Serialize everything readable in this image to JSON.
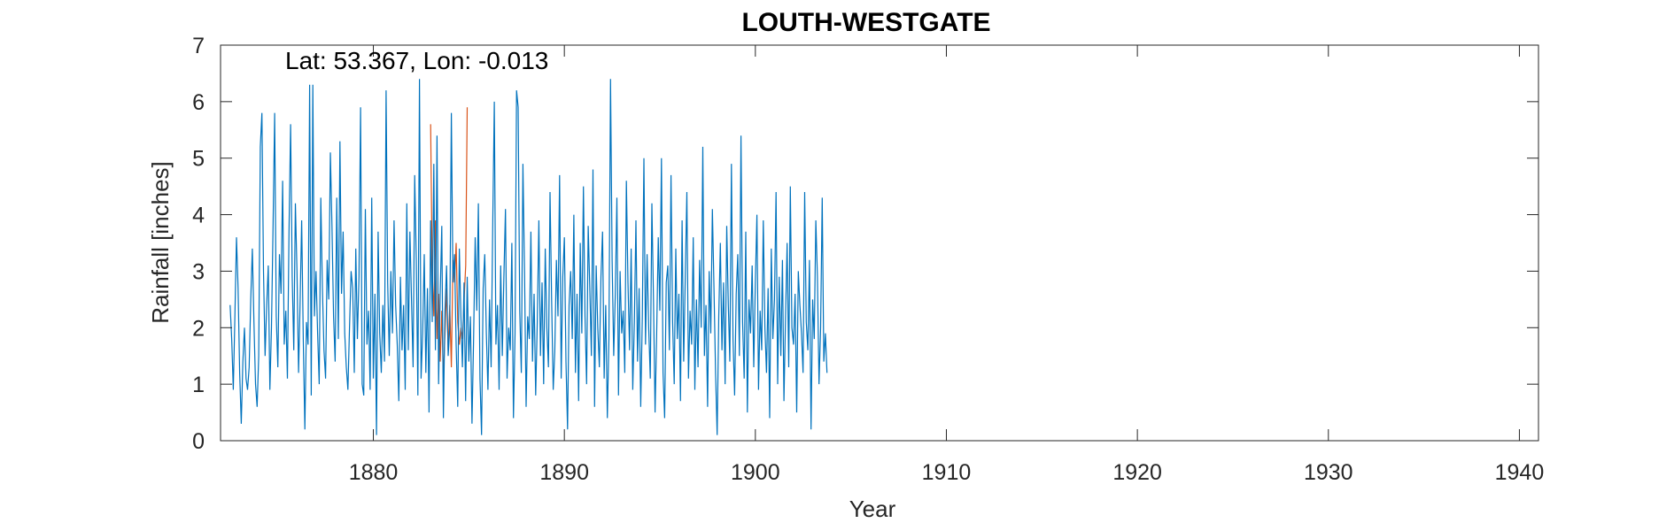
{
  "chart_data": {
    "type": "line",
    "title": "LOUTH-WESTGATE",
    "xlabel": "Year",
    "ylabel": "Rainfall [inches]",
    "annotation": "Lat: 53.367, Lon: -0.013",
    "xlim": [
      1872,
      1941
    ],
    "ylim": [
      0,
      7
    ],
    "xticks": [
      1880,
      1890,
      1900,
      1910,
      1920,
      1930,
      1940
    ],
    "yticks": [
      0,
      1,
      2,
      3,
      4,
      5,
      6,
      7
    ],
    "grid": false,
    "box": true,
    "colors": {
      "primary": "#0072BD",
      "secondary": "#D95319"
    },
    "series": [
      {
        "color": "#0072BD",
        "x_start": 1872.5,
        "x_step": 0.08333,
        "values": [
          2.4,
          1.8,
          0.9,
          2.2,
          3.6,
          2.7,
          1.2,
          0.3,
          1.4,
          2.0,
          1.1,
          0.9,
          1.3,
          2.5,
          3.4,
          2.1,
          1.0,
          0.6,
          1.5,
          5.2,
          5.8,
          3.0,
          1.5,
          2.4,
          3.1,
          0.9,
          2.0,
          3.8,
          5.8,
          2.2,
          1.3,
          3.3,
          2.6,
          4.6,
          1.7,
          2.3,
          1.1,
          3.7,
          5.6,
          2.9,
          1.6,
          4.2,
          3.0,
          1.2,
          2.5,
          3.9,
          1.8,
          0.2,
          2.1,
          1.7,
          6.3,
          0.8,
          6.3,
          2.2,
          3.0,
          1.9,
          1.0,
          4.3,
          2.7,
          1.6,
          1.1,
          3.2,
          2.5,
          5.1,
          3.8,
          2.2,
          1.4,
          4.3,
          1.8,
          5.3,
          2.6,
          3.7,
          1.9,
          1.3,
          0.9,
          2.0,
          3.0,
          2.7,
          1.2,
          3.4,
          1.8,
          2.9,
          5.9,
          1.0,
          0.8,
          4.1,
          1.7,
          2.3,
          0.9,
          4.3,
          1.1,
          2.6,
          0.1,
          3.7,
          1.9,
          1.2,
          2.4,
          1.4,
          6.2,
          2.8,
          1.5,
          3.0,
          1.9,
          3.9,
          2.4,
          1.7,
          0.7,
          2.9,
          1.6,
          2.4,
          0.9,
          4.2,
          1.6,
          3.7,
          2.5,
          1.3,
          4.7,
          3.2,
          0.8,
          6.4,
          1.1,
          1.9,
          3.3,
          1.2,
          2.7,
          0.5,
          3.9,
          2.1,
          4.9,
          1.6,
          5.4,
          1.0,
          2.6,
          3.8,
          0.4,
          2.3,
          3.1,
          1.5,
          2.0,
          5.8,
          2.8,
          3.3,
          1.7,
          0.6,
          3.4,
          2.2,
          1.3,
          2.8,
          0.7,
          2.9,
          1.4,
          2.2,
          0.3,
          1.8,
          3.6,
          2.3,
          4.2,
          1.1,
          0.1,
          2.7,
          3.3,
          1.9,
          0.9,
          2.5,
          1.3,
          3.8,
          6.0,
          1.7,
          2.4,
          0.9,
          3.1,
          1.5,
          2.9,
          4.1,
          1.1,
          2.0,
          1.6,
          3.5,
          0.4,
          1.9,
          6.2,
          5.9,
          2.3,
          1.2,
          4.9,
          3.0,
          0.6,
          2.2,
          1.8,
          3.7,
          1.4,
          2.6,
          0.8,
          2.1,
          3.9,
          1.5,
          2.8,
          1.0,
          3.4,
          2.0,
          1.3,
          4.4,
          2.5,
          0.9,
          1.6,
          3.2,
          2.2,
          4.7,
          1.1,
          2.9,
          3.6,
          1.4,
          0.2,
          2.4,
          3.0,
          1.8,
          4.0,
          1.2,
          2.6,
          0.7,
          3.5,
          1.9,
          4.5,
          2.2,
          1.0,
          3.8,
          2.7,
          1.5,
          4.8,
          0.6,
          3.1,
          2.0,
          1.3,
          2.9,
          3.7,
          1.1,
          2.4,
          0.4,
          1.8,
          6.4,
          3.2,
          1.5,
          2.6,
          4.3,
          0.8,
          3.0,
          1.9,
          2.3,
          1.2,
          4.6,
          2.8,
          1.6,
          3.4,
          0.9,
          2.1,
          3.9,
          1.4,
          2.7,
          0.6,
          2.2,
          5.0,
          1.7,
          3.3,
          2.0,
          1.1,
          4.2,
          2.5,
          0.5,
          1.9,
          3.6,
          2.3,
          5.0,
          1.2,
          0.4,
          2.8,
          3.1,
          1.6,
          4.7,
          2.1,
          1.0,
          3.4,
          1.8,
          2.6,
          0.7,
          3.9,
          1.4,
          2.9,
          4.4,
          1.1,
          2.3,
          1.7,
          3.6,
          0.9,
          2.5,
          1.3,
          3.2,
          2.0,
          5.2,
          1.5,
          2.4,
          0.6,
          3.0,
          1.9,
          4.1,
          2.7,
          1.2,
          0.1,
          2.2,
          3.5,
          1.6,
          2.8,
          1.0,
          3.8,
          2.4,
          1.4,
          4.9,
          1.8,
          0.8,
          2.6,
          3.3,
          1.5,
          5.4,
          2.1,
          1.1,
          3.7,
          0.5,
          2.5,
          1.9,
          3.1,
          1.3,
          2.8,
          4.0,
          0.9,
          2.3,
          1.6,
          3.9,
          2.0,
          1.2,
          2.7,
          0.4,
          3.4,
          1.8,
          2.5,
          4.4,
          1.0,
          2.9,
          1.5,
          3.2,
          0.7,
          2.2,
          3.5,
          1.3,
          4.5,
          2.0,
          1.7,
          2.6,
          0.5,
          3.0,
          2.4,
          1.9,
          1.2,
          4.4,
          2.1,
          1.6,
          3.2,
          0.2,
          2.5,
          1.8,
          3.9,
          2.9,
          1.0,
          2.0,
          4.3,
          1.4,
          1.9,
          1.2
        ]
      },
      {
        "color": "#D95319",
        "x_start": 1883.0,
        "x_step": 0.08333,
        "values": [
          5.6,
          3.0,
          2.2,
          3.9,
          1.8,
          2.6,
          1.4,
          2.3,
          1.1,
          1.9,
          2.7,
          1.6,
          2.4,
          1.3,
          3.2,
          2.8,
          3.5,
          2.1,
          1.7,
          2.0,
          1.8,
          2.5,
          3.1,
          5.9
        ]
      }
    ]
  }
}
